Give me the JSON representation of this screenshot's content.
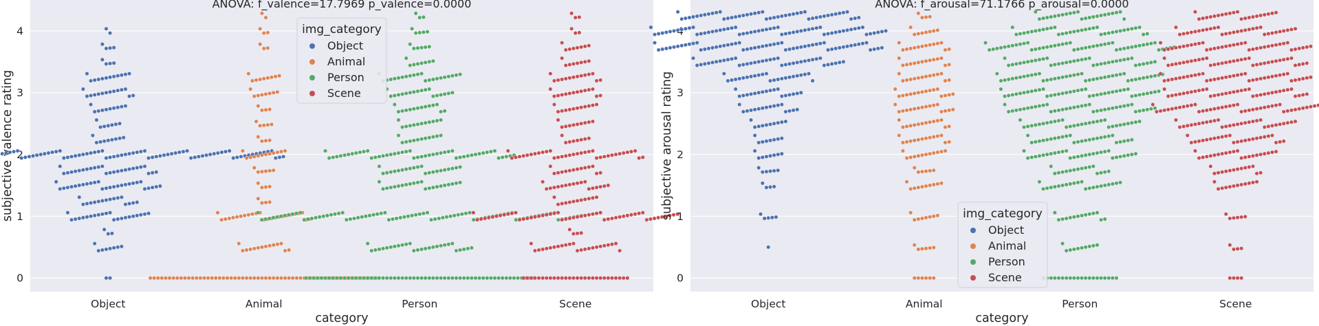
{
  "chart_data": [
    {
      "type": "scatter",
      "subtype": "swarm",
      "title": "ANOVA: f_valence=17.7969 p_valence=0.0000",
      "xlabel": "category",
      "ylabel": "subjective valence rating",
      "categories": [
        "Object",
        "Animal",
        "Person",
        "Scene"
      ],
      "ylim": [
        -0.22,
        4.5
      ],
      "yticks": [
        0,
        1,
        2,
        3,
        4
      ],
      "grid": true,
      "legend": {
        "title": "img_category",
        "location": "upper-center",
        "entries": [
          "Object",
          "Animal",
          "Person",
          "Scene"
        ]
      },
      "series": [
        {
          "name": "Object",
          "color": "#4c72b0",
          "distribution": [
            [
              0,
              2
            ],
            [
              0.5,
              8
            ],
            [
              0.75,
              3
            ],
            [
              1.0,
              22
            ],
            [
              1.25,
              16
            ],
            [
              1.5,
              28
            ],
            [
              1.75,
              26
            ],
            [
              2.0,
              92
            ],
            [
              2.25,
              9
            ],
            [
              2.5,
              7
            ],
            [
              2.75,
              10
            ],
            [
              3.0,
              14
            ],
            [
              3.25,
              12
            ],
            [
              3.5,
              4
            ],
            [
              3.75,
              4
            ],
            [
              4.0,
              2
            ]
          ]
        },
        {
          "name": "Animal",
          "color": "#dd8452",
          "distribution": [
            [
              0,
              60
            ],
            [
              0.5,
              14
            ],
            [
              1.0,
              25
            ],
            [
              1.25,
              4
            ],
            [
              1.5,
              4
            ],
            [
              1.75,
              6
            ],
            [
              2.0,
              12
            ],
            [
              2.25,
              4
            ],
            [
              2.5,
              5
            ],
            [
              2.75,
              4
            ],
            [
              3.0,
              8
            ],
            [
              3.25,
              9
            ],
            [
              3.75,
              3
            ],
            [
              4.0,
              3
            ],
            [
              4.25,
              2
            ]
          ]
        },
        {
          "name": "Person",
          "color": "#55a868",
          "distribution": [
            [
              0,
              60
            ],
            [
              0.5,
              28
            ],
            [
              1.0,
              85
            ],
            [
              1.5,
              22
            ],
            [
              1.75,
              22
            ],
            [
              2.0,
              50
            ],
            [
              2.25,
              12
            ],
            [
              2.5,
              12
            ],
            [
              2.75,
              14
            ],
            [
              3.0,
              18
            ],
            [
              3.25,
              22
            ],
            [
              3.5,
              8
            ],
            [
              3.75,
              6
            ],
            [
              4.0,
              5
            ],
            [
              4.25,
              3
            ]
          ]
        },
        {
          "name": "Scene",
          "color": "#c44e52",
          "distribution": [
            [
              0,
              28
            ],
            [
              0.5,
              24
            ],
            [
              0.75,
              4
            ],
            [
              1.0,
              54
            ],
            [
              1.25,
              12
            ],
            [
              1.5,
              18
            ],
            [
              1.75,
              14
            ],
            [
              2.0,
              36
            ],
            [
              2.25,
              8
            ],
            [
              2.5,
              10
            ],
            [
              2.75,
              12
            ],
            [
              3.0,
              14
            ],
            [
              3.25,
              14
            ],
            [
              3.5,
              8
            ],
            [
              3.75,
              8
            ],
            [
              4.0,
              3
            ],
            [
              4.25,
              3
            ]
          ]
        }
      ]
    },
    {
      "type": "scatter",
      "subtype": "swarm",
      "title": "ANOVA: f_arousal=71.1766 p_arousal=0.0000",
      "xlabel": "category",
      "ylabel": "subjective arousal rating",
      "categories": [
        "Object",
        "Animal",
        "Person",
        "Scene"
      ],
      "ylim": [
        -0.22,
        4.5
      ],
      "yticks": [
        0,
        1,
        2,
        3,
        4
      ],
      "grid": true,
      "legend": {
        "title": "img_category",
        "location": "lower-center",
        "entries": [
          "Object",
          "Animal",
          "Person",
          "Scene"
        ]
      },
      "series": [
        {
          "name": "Object",
          "color": "#4c72b0",
          "distribution": [
            [
              0.5,
              1
            ],
            [
              1.0,
              5
            ],
            [
              1.5,
              4
            ],
            [
              1.75,
              6
            ],
            [
              2.0,
              8
            ],
            [
              2.25,
              8
            ],
            [
              2.5,
              10
            ],
            [
              2.75,
              16
            ],
            [
              3.0,
              18
            ],
            [
              3.25,
              24
            ],
            [
              3.5,
              40
            ],
            [
              3.75,
              60
            ],
            [
              4.0,
              62
            ],
            [
              4.25,
              48
            ]
          ]
        },
        {
          "name": "Animal",
          "color": "#dd8452",
          "distribution": [
            [
              0,
              6
            ],
            [
              0.5,
              6
            ],
            [
              1.0,
              8
            ],
            [
              1.5,
              10
            ],
            [
              1.75,
              6
            ],
            [
              2.0,
              12
            ],
            [
              2.25,
              14
            ],
            [
              2.5,
              14
            ],
            [
              2.75,
              16
            ],
            [
              3.0,
              16
            ],
            [
              3.25,
              14
            ],
            [
              3.5,
              14
            ],
            [
              3.75,
              14
            ],
            [
              4.0,
              8
            ],
            [
              4.25,
              4
            ]
          ]
        },
        {
          "name": "Person",
          "color": "#55a868",
          "distribution": [
            [
              0,
              20
            ],
            [
              0.5,
              10
            ],
            [
              1.0,
              14
            ],
            [
              1.5,
              22
            ],
            [
              1.75,
              16
            ],
            [
              2.0,
              30
            ],
            [
              2.25,
              28
            ],
            [
              2.5,
              32
            ],
            [
              2.75,
              40
            ],
            [
              3.0,
              42
            ],
            [
              3.25,
              44
            ],
            [
              3.5,
              40
            ],
            [
              3.75,
              50
            ],
            [
              4.0,
              36
            ],
            [
              4.25,
              24
            ]
          ]
        },
        {
          "name": "Scene",
          "color": "#c44e52",
          "distribution": [
            [
              0,
              4
            ],
            [
              0.5,
              4
            ],
            [
              1.0,
              6
            ],
            [
              1.5,
              12
            ],
            [
              1.75,
              14
            ],
            [
              2.0,
              22
            ],
            [
              2.25,
              26
            ],
            [
              2.5,
              32
            ],
            [
              2.75,
              44
            ],
            [
              3.0,
              38
            ],
            [
              3.25,
              40
            ],
            [
              3.5,
              38
            ],
            [
              3.75,
              40
            ],
            [
              4.0,
              32
            ],
            [
              4.25,
              22
            ]
          ]
        }
      ]
    }
  ]
}
